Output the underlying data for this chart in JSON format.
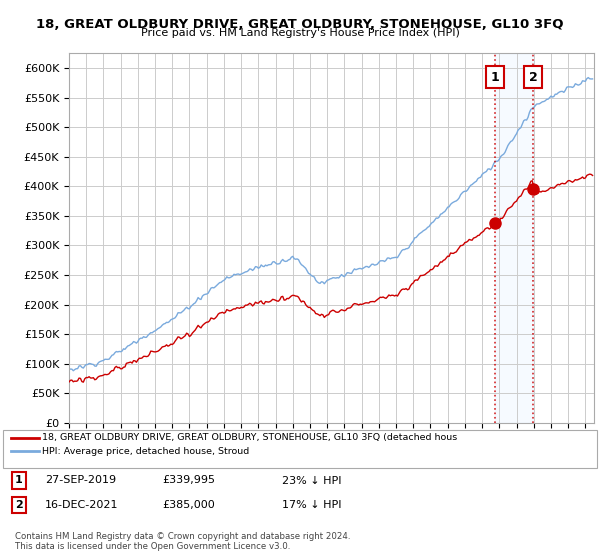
{
  "title": "18, GREAT OLDBURY DRIVE, GREAT OLDBURY, STONEHOUSE, GL10 3FQ",
  "subtitle": "Price paid vs. HM Land Registry's House Price Index (HPI)",
  "ylim": [
    0,
    625000
  ],
  "yticks": [
    0,
    50000,
    100000,
    150000,
    200000,
    250000,
    300000,
    350000,
    400000,
    450000,
    500000,
    550000,
    600000
  ],
  "ytick_labels": [
    "£0",
    "£50K",
    "£100K",
    "£150K",
    "£200K",
    "£250K",
    "£300K",
    "£350K",
    "£400K",
    "£450K",
    "£500K",
    "£550K",
    "£600K"
  ],
  "background_color": "#ffffff",
  "grid_color": "#cccccc",
  "hpi_color": "#7aaadd",
  "price_color": "#cc0000",
  "shade_color": "#ddeeff",
  "t1_year": 2019.74,
  "t2_year": 2021.96,
  "t1_price": 339995,
  "t2_price": 385000,
  "transaction1": {
    "date": "27-SEP-2019",
    "price": 339995,
    "pct": "23% ↓ HPI"
  },
  "transaction2": {
    "date": "16-DEC-2021",
    "price": 385000,
    "pct": "17% ↓ HPI"
  },
  "legend_line1": "18, GREAT OLDBURY DRIVE, GREAT OLDBURY, STONEHOUSE, GL10 3FQ (detached hous",
  "legend_line2": "HPI: Average price, detached house, Stroud",
  "footnote": "Contains HM Land Registry data © Crown copyright and database right 2024.\nThis data is licensed under the Open Government Licence v3.0."
}
